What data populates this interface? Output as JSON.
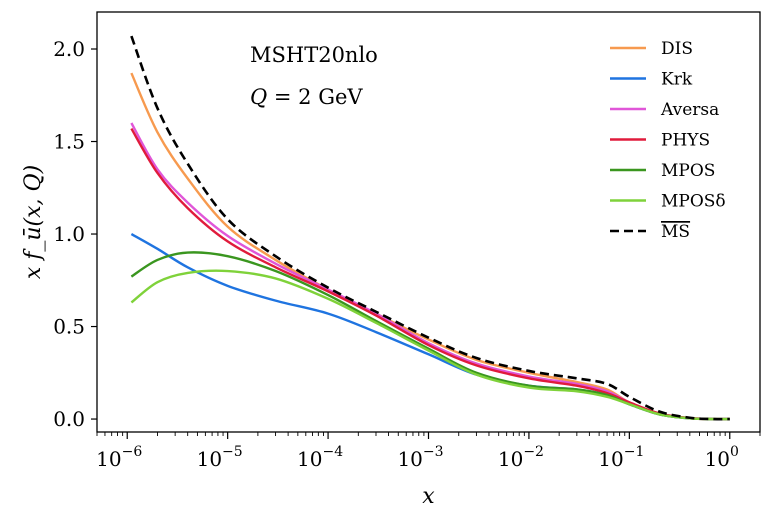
{
  "chart_data": {
    "type": "line",
    "title": "",
    "annotations": [
      "MSHT20nlo",
      "Q = 2 GeV"
    ],
    "xlabel": "x",
    "ylabel": "x f_ū(x, Q)",
    "xscale": "log",
    "xlim": [
      5e-07,
      2
    ],
    "ylim": [
      -0.07,
      2.2
    ],
    "yticks": [
      0.0,
      0.5,
      1.0,
      1.5,
      2.0
    ],
    "ytick_labels": [
      "0.0",
      "0.5",
      "1.0",
      "1.5",
      "2.0"
    ],
    "xticks": [
      1e-06,
      1e-05,
      0.0001,
      0.001,
      0.01,
      0.1,
      1
    ],
    "xtick_labels": [
      {
        "base": "10",
        "exp": "−6"
      },
      {
        "base": "10",
        "exp": "−5"
      },
      {
        "base": "10",
        "exp": "−4"
      },
      {
        "base": "10",
        "exp": "−3"
      },
      {
        "base": "10",
        "exp": "−2"
      },
      {
        "base": "10",
        "exp": "−1"
      },
      {
        "base": "10",
        "exp": "0"
      }
    ],
    "legend_position": "top-right",
    "x": [
      1.1e-06,
      2e-06,
      4e-06,
      1e-05,
      3e-05,
      0.0001,
      0.0003,
      0.001,
      0.003,
      0.01,
      0.03,
      0.06,
      0.1,
      0.2,
      0.4,
      0.7,
      1.0
    ],
    "series": [
      {
        "name": "DIS",
        "color": "#f79a4f",
        "dashed": false,
        "values": [
          1.87,
          1.55,
          1.3,
          1.04,
          0.86,
          0.7,
          0.57,
          0.43,
          0.32,
          0.25,
          0.2,
          0.16,
          0.09,
          0.03,
          0.005,
          0.0,
          0.0
        ]
      },
      {
        "name": "Krk",
        "color": "#1f74e0",
        "dashed": false,
        "values": [
          1.0,
          0.92,
          0.82,
          0.72,
          0.64,
          0.57,
          0.47,
          0.35,
          0.24,
          0.18,
          0.16,
          0.13,
          0.08,
          0.025,
          0.004,
          0.0,
          0.0
        ]
      },
      {
        "name": "Aversa",
        "color": "#e056d8",
        "dashed": false,
        "values": [
          1.6,
          1.35,
          1.17,
          0.99,
          0.84,
          0.7,
          0.57,
          0.41,
          0.3,
          0.23,
          0.19,
          0.15,
          0.09,
          0.03,
          0.005,
          0.0,
          0.0
        ]
      },
      {
        "name": "PHYS",
        "color": "#e01b3c",
        "dashed": false,
        "values": [
          1.57,
          1.33,
          1.14,
          0.96,
          0.82,
          0.69,
          0.56,
          0.4,
          0.29,
          0.22,
          0.18,
          0.14,
          0.09,
          0.03,
          0.005,
          0.0,
          0.0
        ]
      },
      {
        "name": "MPOS",
        "color": "#3a961f",
        "dashed": false,
        "values": [
          0.77,
          0.86,
          0.9,
          0.88,
          0.8,
          0.67,
          0.53,
          0.38,
          0.25,
          0.18,
          0.16,
          0.13,
          0.08,
          0.025,
          0.004,
          0.0,
          0.0
        ]
      },
      {
        "name": "MPOSδ",
        "color": "#7fd23a",
        "dashed": false,
        "values": [
          0.63,
          0.74,
          0.79,
          0.8,
          0.76,
          0.65,
          0.52,
          0.37,
          0.24,
          0.17,
          0.15,
          0.12,
          0.08,
          0.025,
          0.004,
          0.0,
          0.0
        ]
      },
      {
        "name": "MS",
        "overline": true,
        "color": "#000000",
        "dashed": true,
        "values": [
          2.07,
          1.68,
          1.38,
          1.08,
          0.88,
          0.71,
          0.58,
          0.44,
          0.33,
          0.26,
          0.22,
          0.19,
          0.12,
          0.04,
          0.007,
          0.0,
          0.0
        ]
      }
    ]
  }
}
